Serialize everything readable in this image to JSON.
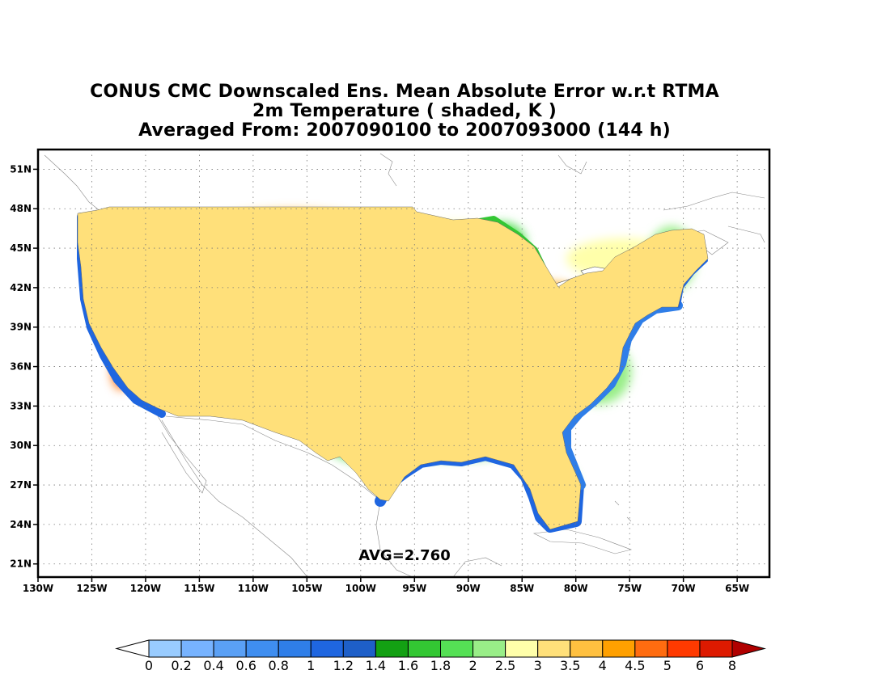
{
  "title": {
    "line1": "CONUS CMC Downscaled Ens. Mean Absolute Error w.r.t RTMA",
    "line2": "2m Temperature ( shaded, K )",
    "line3": "Averaged From: 2007090100 to 2007093000 (144 h)"
  },
  "avg_label": "AVG=2.760",
  "axes": {
    "lat_ticks": [
      "51N",
      "48N",
      "45N",
      "42N",
      "39N",
      "36N",
      "33N",
      "30N",
      "27N",
      "24N",
      "21N"
    ],
    "lat_values": [
      51,
      48,
      45,
      42,
      39,
      36,
      33,
      30,
      27,
      24,
      21
    ],
    "lon_ticks": [
      "130W",
      "125W",
      "120W",
      "115W",
      "110W",
      "105W",
      "100W",
      "95W",
      "90W",
      "85W",
      "80W",
      "75W",
      "70W",
      "65W"
    ],
    "lon_values": [
      -130,
      -125,
      -120,
      -115,
      -110,
      -105,
      -100,
      -95,
      -90,
      -85,
      -80,
      -75,
      -70,
      -65
    ],
    "lat_range": [
      20,
      52.5
    ],
    "lon_range": [
      -130,
      -62
    ],
    "grid": true
  },
  "colorbar": {
    "labels": [
      "0",
      "0.2",
      "0.4",
      "0.6",
      "0.8",
      "1",
      "1.2",
      "1.4",
      "1.6",
      "1.8",
      "2",
      "2.5",
      "3",
      "3.5",
      "4",
      "4.5",
      "5",
      "6",
      "8"
    ],
    "colors": [
      "#99ccff",
      "#77b3ff",
      "#5aa0f5",
      "#3f8ef0",
      "#2f7ee8",
      "#1f66e0",
      "#1e5fc8",
      "#13a013",
      "#33c733",
      "#55e055",
      "#99ee88",
      "#ffffaa",
      "#ffe07a",
      "#ffc040",
      "#ffa000",
      "#ff6c10",
      "#ff3a00",
      "#dd1a00",
      "#b00000"
    ],
    "under_color": "#ffffff",
    "over_color": "#b00000"
  }
}
